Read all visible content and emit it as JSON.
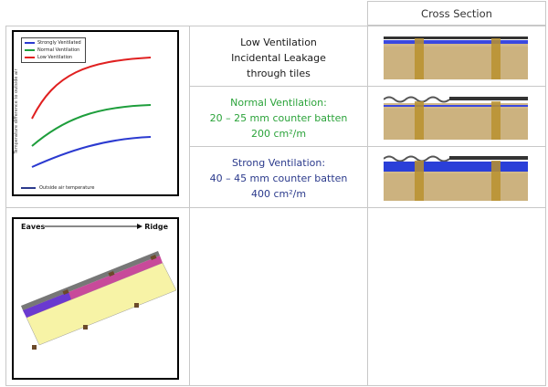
{
  "header": {
    "cross_section": "Cross Section"
  },
  "chart": {
    "legend": [
      {
        "label": "Strongly Ventilated",
        "color": "#2b3ad0"
      },
      {
        "label": "Normal Ventilation",
        "color": "#1e9e3c"
      },
      {
        "label": "Low Ventilation",
        "color": "#e02020"
      }
    ],
    "y_axis_label": "Temperature difference to outside air",
    "bottom_legend": "Outside air temperature"
  },
  "rows": [
    {
      "lines": [
        "Low Ventilation",
        "Incidental Leakage",
        "through tiles"
      ],
      "color": "black"
    },
    {
      "lines": [
        "Normal Ventilation:",
        "20 – 25 mm counter batten",
        "200 cm²/m"
      ],
      "color": "green"
    },
    {
      "lines": [
        "Strong Ventilation:",
        "40 – 45 mm counter batten",
        "400 cm²/m"
      ],
      "color": "blue"
    }
  ],
  "roof": {
    "eaves": "Eaves",
    "ridge": "Ridge"
  },
  "colors": {
    "blue_layer": "#2a3fd8",
    "wood": "#c9a94a",
    "insulation": "#d9c089"
  }
}
